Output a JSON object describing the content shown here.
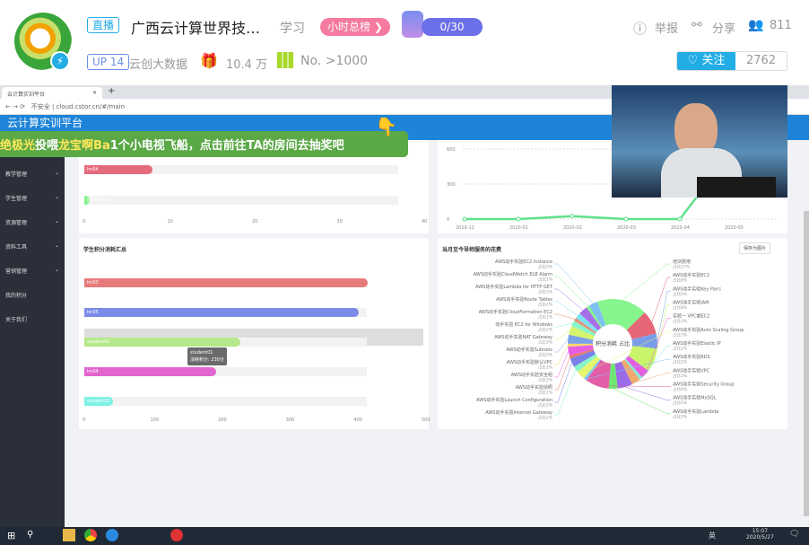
{
  "header": {
    "live_tag": "直播",
    "title": "广西云计算世界技…",
    "category": "学习",
    "rank_button": "小时总榜",
    "fan_progress": "0/30",
    "up_level": "UP 14",
    "streamer": "云创大数据",
    "gift_count": "10.4 万",
    "rank": "No. >1000",
    "report": "举报",
    "share": "分享",
    "viewers": "811",
    "follow": "关注",
    "followers": "2762"
  },
  "browser": {
    "tab_title": "云计算实训平台",
    "new_tab": "+",
    "url": "不安全 | cloud.cstor.cn/#/main"
  },
  "app": {
    "title": "云计算实训平台",
    "sidebar": [
      "教学管理",
      "学生管理",
      "资源管理",
      "资料工具",
      "营销管理",
      "我的积分",
      "关于我们"
    ]
  },
  "banner": {
    "user": "绝极光",
    "verb": "投喂",
    "target": "龙宝啊Ba",
    "message": "1个小电视飞船，点击前往TA的房间去抽奖吧"
  },
  "chart_data": [
    {
      "type": "bar",
      "orientation": "horizontal",
      "categories": [
        "hn04",
        "student02"
      ],
      "values": [
        8,
        0.6
      ],
      "xlim": [
        0,
        40
      ],
      "xticks": [
        "0",
        "10",
        "20",
        "30",
        "40"
      ]
    },
    {
      "type": "line",
      "x": [
        "2019-12",
        "2020-01",
        "2020-02",
        "2020-03",
        "2020-04",
        "2020-05"
      ],
      "values": [
        0,
        0,
        25,
        0,
        0,
        600
      ],
      "ylim": [
        0,
        600
      ],
      "yticks": [
        "0",
        "300",
        "600"
      ],
      "grid": true,
      "color": "#5fe08a"
    },
    {
      "type": "bar",
      "orientation": "horizontal",
      "title": "学生积分消耗汇总",
      "categories": [
        "hn03",
        "hn05",
        "student01",
        "hn04",
        "student02"
      ],
      "values": [
        418,
        405,
        230,
        195,
        42
      ],
      "colors": [
        "#e77b7b",
        "#7b8be8",
        "#b5e88a",
        "#e264cf",
        "#7ff0e6"
      ],
      "xlim": [
        0,
        500
      ],
      "xticks": [
        "0",
        "100",
        "200",
        "300",
        "400",
        "500"
      ],
      "tooltip": {
        "name": "student01",
        "text": "消耗积分: 230分"
      }
    },
    {
      "type": "pie",
      "title": "当月至今导师服务的花费",
      "center_label": "积分消耗 占比",
      "save_button": "保存为图片",
      "slices": [
        {
          "label": "培训费用",
          "pct": "占比17%",
          "value": 17,
          "color": "#86f58e"
        },
        {
          "label": "AWS动手实验EC2",
          "pct": "占比8%",
          "value": 8,
          "color": "#e46677"
        },
        {
          "label": "AWS动手实验Key Pairs",
          "pct": "占比5%",
          "value": 5,
          "color": "#7a9de8"
        },
        {
          "label": "AWS动手实验IAM",
          "pct": "占比8%",
          "value": 8,
          "color": "#c9f56a"
        },
        {
          "label": "实验一 VPC或EC2",
          "pct": "占比3%",
          "value": 3,
          "color": "#e65ee0"
        },
        {
          "label": "AWS动手实验Elastic IP",
          "pct": "占比1%",
          "value": 1,
          "color": "#7ff0d8"
        },
        {
          "label": "AWS动手实验VPC",
          "pct": "占比3%",
          "value": 3,
          "color": "#f0a86e"
        },
        {
          "label": "AWS动手实验MySQL",
          "pct": "占比5%",
          "value": 5,
          "color": "#9b6be8"
        },
        {
          "label": "AWS动手实验Lambda",
          "pct": "占比3%",
          "value": 3,
          "color": "#6ee86e"
        },
        {
          "label": "AWS动手实验Security Group",
          "pct": "占比8%",
          "value": 8,
          "color": "#e25fa8"
        },
        {
          "label": "AWS动手实验RDS",
          "pct": "占比1%",
          "value": 1,
          "color": "#7ec8f0"
        },
        {
          "label": "AWS动手实验Auto Scaling Group",
          "pct": "占比3%",
          "value": 3,
          "color": "#e6f56e"
        },
        {
          "label": "AWS动手实验Internet Gateway",
          "pct": "占比2%",
          "value": 2,
          "color": "#86f5c8"
        },
        {
          "label": "AWS动手实验Launch Configuration",
          "pct": "占比3%",
          "value": 3,
          "color": "#7a80e8"
        },
        {
          "label": "AWS动手实验快照",
          "pct": "占比1%",
          "value": 1,
          "color": "#e67a6e"
        },
        {
          "label": "AWS动手实验安全组",
          "pct": "占比3%",
          "value": 3,
          "color": "#e65ee0"
        },
        {
          "label": "AWS动手实验默认VPC",
          "pct": "占比1%",
          "value": 1,
          "color": "#f5d86e"
        },
        {
          "label": "AWS动手实验Subnets",
          "pct": "占比3%",
          "value": 3,
          "color": "#7aa0e8"
        },
        {
          "label": "AWS动手实验NAT Gateway",
          "pct": "占比3%",
          "value": 3,
          "color": "#d6f56e"
        },
        {
          "label": "动手实验 EC2 for Windows",
          "pct": "占比2%",
          "value": 2,
          "color": "#86f5c8"
        },
        {
          "label": "AWS动手实验CloudFormation EC2",
          "pct": "占比1%",
          "value": 1,
          "color": "#f08a6e"
        },
        {
          "label": "AWS动手实验Route Tables",
          "pct": "占比2%",
          "value": 2,
          "color": "#7ee0f0"
        },
        {
          "label": "AWS动手实验Lambda for HTTP GET",
          "pct": "占比3%",
          "value": 3,
          "color": "#a86ee8"
        },
        {
          "label": "AWS动手实验CloudWatch ELB Alarm",
          "pct": "占比1%",
          "value": 1,
          "color": "#86f58e"
        },
        {
          "label": "AWS动手实验EC2 Instance",
          "pct": "占比3%",
          "value": 3,
          "color": "#7ec0f0"
        }
      ]
    }
  ],
  "taskbar": {
    "time": "15:07",
    "date": "2020/5/27",
    "ime": "英"
  }
}
